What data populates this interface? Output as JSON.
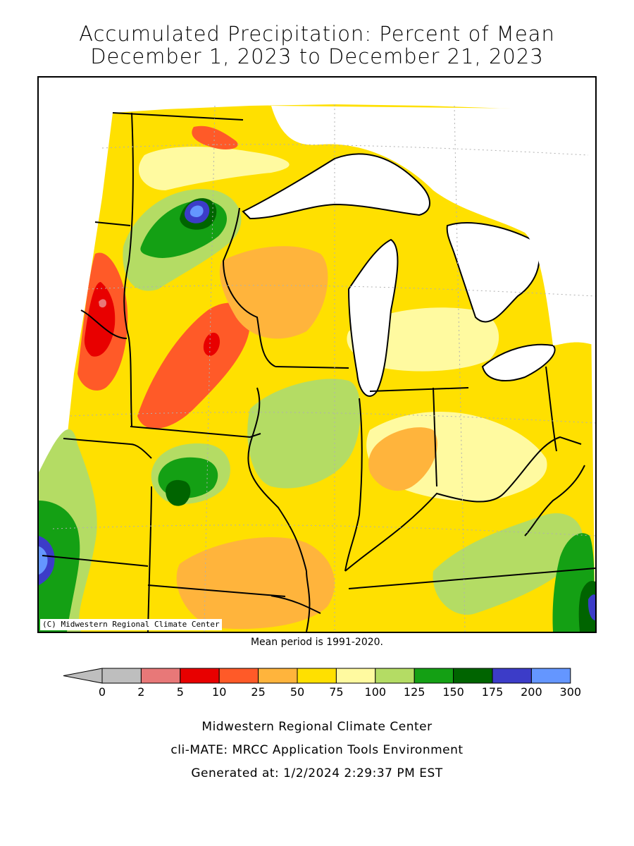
{
  "header": {
    "title_line1": "Accumulated Precipitation: Percent of Mean",
    "title_line2": "December 1, 2023 to December 21, 2023"
  },
  "map": {
    "credit": "(C) Midwestern Regional Climate Center",
    "mean_period": "Mean period is 1991-2020."
  },
  "legend": {
    "ticks": [
      "0",
      "2",
      "5",
      "10",
      "25",
      "50",
      "75",
      "100",
      "125",
      "150",
      "175",
      "200",
      "300"
    ],
    "colors": [
      "#bebebe",
      "#e87878",
      "#e80000",
      "#ff5a28",
      "#ffb43c",
      "#ffe000",
      "#fffaa0",
      "#b4dc64",
      "#14a014",
      "#006400",
      "#3c3cc8",
      "#6496ff"
    ],
    "under_color": "#bebebe"
  },
  "footer": {
    "line1": "Midwestern Regional Climate Center",
    "line2": "cli-MATE: MRCC Application Tools Environment",
    "line3": "Generated at: 1/2/2024 2:29:37 PM EST"
  }
}
